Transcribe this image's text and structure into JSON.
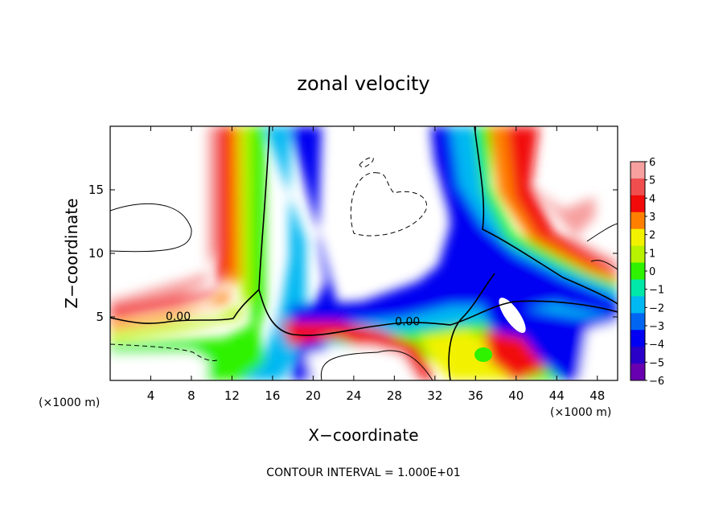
{
  "chart_data": {
    "type": "heatmap",
    "title": "zonal velocity",
    "xlabel": "X−coordinate",
    "ylabel": "Z−coordinate",
    "x_unit_left": "(×1000 m)",
    "x_unit_right": "(×1000 m)",
    "footer": "CONTOUR INTERVAL = 1.000E+01",
    "xlim": [
      0,
      50
    ],
    "ylim": [
      0,
      20
    ],
    "x_ticks": [
      4,
      8,
      12,
      16,
      20,
      24,
      28,
      32,
      36,
      40,
      44,
      48
    ],
    "x_tick_labels": [
      "4",
      "8",
      "12",
      "16",
      "20",
      "24",
      "28",
      "32",
      "36",
      "40",
      "44",
      "48"
    ],
    "y_ticks": [
      5,
      10,
      15
    ],
    "y_tick_labels": [
      "5",
      "10",
      "15"
    ],
    "contour_labels": [
      {
        "text": "0.00",
        "x": 6.7,
        "z": 5.0
      },
      {
        "text": "0.00",
        "x": 29.3,
        "z": 4.6
      }
    ],
    "colorbar": {
      "values": [
        6,
        5,
        4,
        3,
        2,
        1,
        0,
        -1,
        -2,
        -3,
        -4,
        -5,
        -6
      ],
      "labels": [
        "6",
        "5",
        "4",
        "3",
        "2",
        "1",
        "0",
        "−1",
        "−2",
        "−3",
        "−4",
        "−5",
        "−6"
      ],
      "colors": [
        "#f7a0a0",
        "#f04e4e",
        "#f20a0a",
        "#ff8000",
        "#f2f200",
        "#b8f200",
        "#2ef200",
        "#00e8a8",
        "#00b8f2",
        "#0066f2",
        "#0000f2",
        "#2a00c8",
        "#6800b0"
      ]
    },
    "grid": false
  }
}
